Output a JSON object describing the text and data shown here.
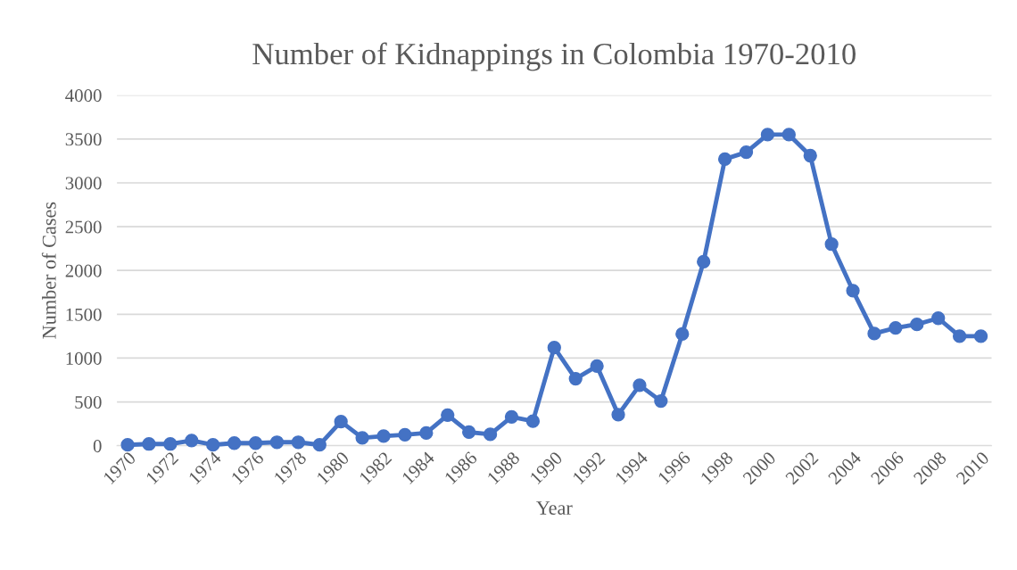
{
  "chart_data": {
    "type": "line",
    "title": "Number of Kidnappings in Colombia 1970-2010",
    "xlabel": "Year",
    "ylabel": "Number of Cases",
    "x": [
      1970,
      1971,
      1972,
      1973,
      1974,
      1975,
      1976,
      1977,
      1978,
      1979,
      1980,
      1981,
      1982,
      1983,
      1984,
      1985,
      1986,
      1987,
      1988,
      1989,
      1990,
      1991,
      1992,
      1993,
      1994,
      1995,
      1996,
      1997,
      1998,
      1999,
      2000,
      2001,
      2002,
      2003,
      2004,
      2005,
      2006,
      2007,
      2008,
      2009,
      2010
    ],
    "series": [
      {
        "color": "#4472c4",
        "values": [
          10,
          20,
          20,
          60,
          10,
          30,
          30,
          40,
          40,
          10,
          275,
          90,
          110,
          125,
          145,
          350,
          155,
          130,
          330,
          280,
          1120,
          765,
          910,
          355,
          690,
          510,
          1275,
          2100,
          3270,
          3350,
          3550,
          3550,
          3310,
          2300,
          1770,
          1280,
          1345,
          1385,
          1455,
          1250,
          1250
        ]
      }
    ],
    "xlim": [
      1969.5,
      2010.5
    ],
    "xticks": [
      1970,
      1972,
      1974,
      1976,
      1978,
      1980,
      1982,
      1984,
      1986,
      1988,
      1990,
      1992,
      1994,
      1996,
      1998,
      2000,
      2002,
      2004,
      2006,
      2008,
      2010
    ],
    "ylim": [
      0,
      4000
    ],
    "yticks": [
      0,
      500,
      1000,
      1500,
      2000,
      2500,
      3000,
      3500,
      4000
    ],
    "grid": "y",
    "marker": "circle",
    "line_style": "solid",
    "legend": false
  }
}
